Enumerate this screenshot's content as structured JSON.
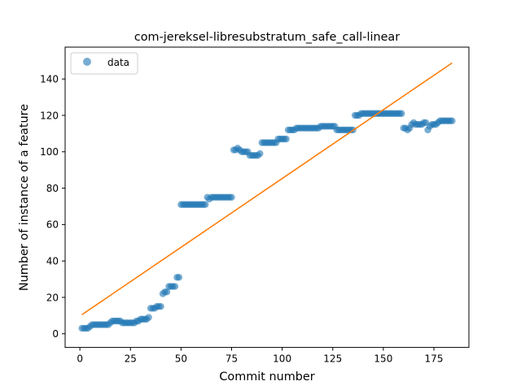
{
  "chart_data": {
    "type": "scatter",
    "title": "com-jereksel-libresubstratum_safe_call-linear",
    "xlabel": "Commit number",
    "ylabel": "Number of instance of a feature",
    "xlim": [
      -7.3,
      192.3
    ],
    "ylim": [
      -7.5,
      157.5
    ],
    "xticks": [
      0,
      25,
      50,
      75,
      100,
      125,
      150,
      175
    ],
    "yticks": [
      0,
      20,
      40,
      60,
      80,
      100,
      120,
      140
    ],
    "grid": false,
    "legend_position": "top-left",
    "colors": {
      "data": "#1f77b4",
      "fit": "#ff7f0e"
    },
    "series": [
      {
        "name": "data",
        "kind": "scatter",
        "x": [
          1,
          2,
          3,
          4,
          5,
          6,
          7,
          8,
          9,
          10,
          11,
          12,
          13,
          14,
          15,
          16,
          17,
          18,
          19,
          20,
          21,
          22,
          23,
          24,
          25,
          26,
          27,
          28,
          29,
          30,
          31,
          32,
          33,
          34,
          35,
          36,
          37,
          38,
          39,
          40,
          41,
          42,
          43,
          44,
          45,
          46,
          47,
          48,
          49,
          50,
          51,
          52,
          53,
          54,
          55,
          56,
          57,
          58,
          59,
          60,
          61,
          62,
          63,
          64,
          65,
          66,
          67,
          68,
          69,
          70,
          71,
          72,
          73,
          74,
          75,
          76,
          77,
          78,
          79,
          80,
          81,
          82,
          83,
          84,
          85,
          86,
          87,
          88,
          89,
          90,
          91,
          92,
          93,
          94,
          95,
          96,
          97,
          98,
          99,
          100,
          101,
          102,
          103,
          104,
          105,
          106,
          107,
          108,
          109,
          110,
          111,
          112,
          113,
          114,
          115,
          116,
          117,
          118,
          119,
          120,
          121,
          122,
          123,
          124,
          125,
          126,
          127,
          128,
          129,
          130,
          131,
          132,
          133,
          134,
          135,
          136,
          137,
          138,
          139,
          140,
          141,
          142,
          143,
          144,
          145,
          146,
          147,
          148,
          149,
          150,
          151,
          152,
          153,
          154,
          155,
          156,
          157,
          158,
          159,
          160,
          161,
          162,
          163,
          164,
          165,
          166,
          167,
          168,
          169,
          170,
          171,
          172,
          173,
          174,
          175,
          176,
          177,
          178,
          179,
          180,
          181,
          182,
          183,
          184
        ],
        "y": [
          3,
          3,
          3,
          3,
          4,
          5,
          5,
          5,
          5,
          5,
          5,
          5,
          5,
          5,
          6,
          7,
          7,
          7,
          7,
          7,
          6,
          6,
          6,
          6,
          6,
          6,
          6,
          7,
          7,
          8,
          8,
          8,
          8,
          9,
          14,
          14,
          14,
          15,
          15,
          15,
          22,
          23,
          23,
          26,
          26,
          26,
          26,
          31,
          31,
          71,
          71,
          71,
          71,
          71,
          71,
          71,
          71,
          71,
          71,
          71,
          71,
          71,
          75,
          74,
          75,
          75,
          75,
          75,
          75,
          75,
          75,
          75,
          75,
          75,
          75,
          101,
          101,
          102,
          101,
          100,
          100,
          100,
          100,
          98,
          98,
          98,
          98,
          98,
          99,
          105,
          105,
          105,
          105,
          105,
          105,
          105,
          105,
          107,
          107,
          107,
          107,
          107,
          112,
          112,
          112,
          112,
          113,
          113,
          113,
          113,
          113,
          113,
          113,
          113,
          113,
          113,
          113,
          113,
          114,
          114,
          114,
          114,
          114,
          114,
          114,
          114,
          112,
          112,
          112,
          112,
          112,
          112,
          112,
          112,
          112,
          120,
          120,
          120,
          121,
          121,
          121,
          121,
          121,
          121,
          121,
          121,
          121,
          121,
          121,
          121,
          121,
          121,
          121,
          121,
          121,
          121,
          121,
          121,
          121,
          113,
          113,
          112,
          113,
          115,
          116,
          115,
          115,
          115,
          115,
          116,
          116,
          112,
          114,
          115,
          115,
          115,
          116,
          117,
          117,
          117,
          117,
          117,
          117,
          117
        ]
      },
      {
        "kind": "line",
        "x": [
          1,
          184
        ],
        "y": [
          10.5,
          148.8
        ]
      }
    ]
  }
}
